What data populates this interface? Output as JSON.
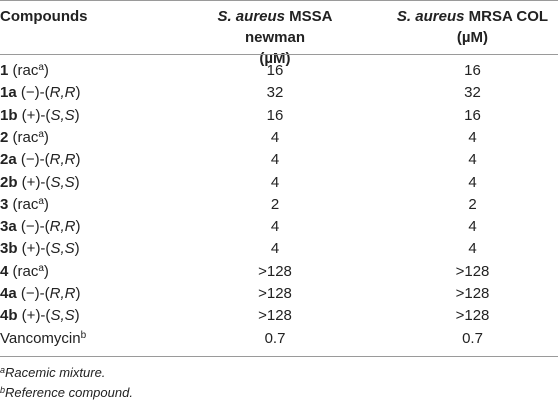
{
  "table": {
    "header": {
      "compounds": "Compounds",
      "col1_italic": "S. aureus",
      "col1_rest": " MSSA newman",
      "col1_unit": "(µM)",
      "col2_italic": "S. aureus",
      "col2_rest": " MRSA COL",
      "col2_unit": "(µM)"
    },
    "rows": [
      {
        "id": "1",
        "pre": " (rac",
        "sup": "a",
        "post": ")",
        "italic": "",
        "mssa": "16",
        "mrsa": "16"
      },
      {
        "id": "1a",
        "pre": " (−)-(",
        "sup": "",
        "post": ")",
        "italic": "R,R",
        "mssa": "32",
        "mrsa": "32"
      },
      {
        "id": "1b",
        "pre": " (+)-(",
        "sup": "",
        "post": ")",
        "italic": "S,S",
        "mssa": "16",
        "mrsa": "16"
      },
      {
        "id": "2",
        "pre": " (rac",
        "sup": "a",
        "post": ")",
        "italic": "",
        "mssa": "4",
        "mrsa": "4"
      },
      {
        "id": "2a",
        "pre": " (−)-(",
        "sup": "",
        "post": ")",
        "italic": "R,R",
        "mssa": "4",
        "mrsa": "4"
      },
      {
        "id": "2b",
        "pre": " (+)-(",
        "sup": "",
        "post": ")",
        "italic": "S,S",
        "mssa": "4",
        "mrsa": "4"
      },
      {
        "id": "3",
        "pre": " (rac",
        "sup": "a",
        "post": ")",
        "italic": "",
        "mssa": "2",
        "mrsa": "2"
      },
      {
        "id": "3a",
        "pre": " (−)-(",
        "sup": "",
        "post": ")",
        "italic": "R,R",
        "mssa": "4",
        "mrsa": "4"
      },
      {
        "id": "3b",
        "pre": " (+)-(",
        "sup": "",
        "post": ")",
        "italic": "S,S",
        "mssa": "4",
        "mrsa": "4"
      },
      {
        "id": "4",
        "pre": " (rac",
        "sup": "a",
        "post": ")",
        "italic": "",
        "mssa": ">128",
        "mrsa": ">128"
      },
      {
        "id": "4a",
        "pre": " (−)-(",
        "sup": "",
        "post": ")",
        "italic": "R,R",
        "mssa": ">128",
        "mrsa": ">128"
      },
      {
        "id": "4b",
        "pre": " (+)-(",
        "sup": "",
        "post": ")",
        "italic": "S,S",
        "mssa": ">128",
        "mrsa": ">128"
      },
      {
        "id": "",
        "pre": "Vancomycin",
        "sup": "b",
        "post": "",
        "italic": "",
        "mssa": "0.7",
        "mrsa": "0.7"
      }
    ]
  },
  "footnotes": [
    {
      "mark": "a",
      "text": "Racemic mixture."
    },
    {
      "mark": "b",
      "text": "Reference compound."
    }
  ]
}
